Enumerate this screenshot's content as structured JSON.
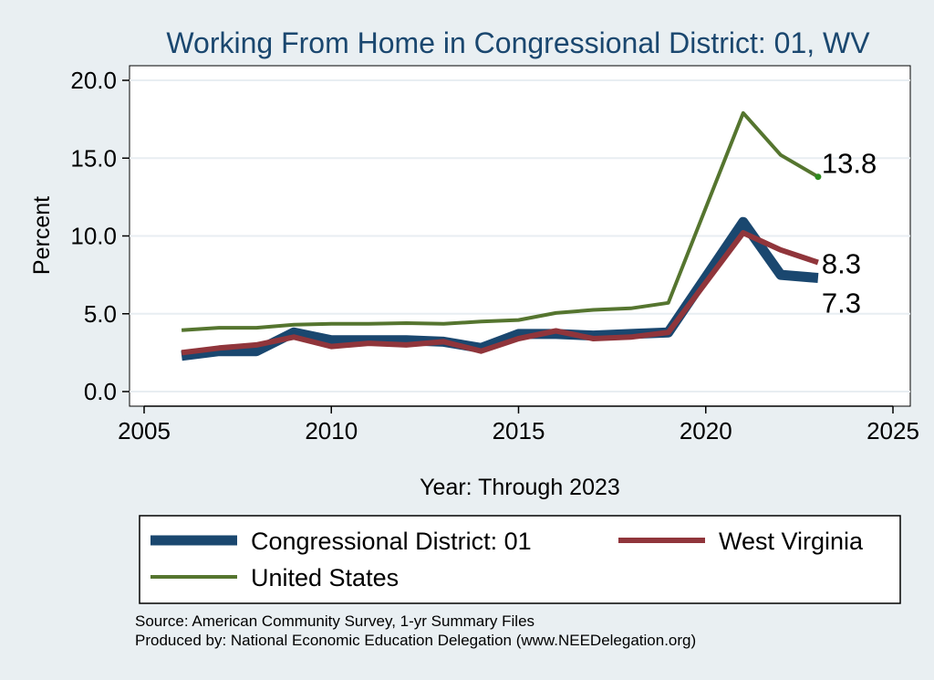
{
  "chart_data": {
    "type": "line",
    "title": "Working From Home in Congressional District: 01, WV",
    "xlabel": "Year: Through 2023",
    "ylabel": "Percent",
    "xlim": [
      2005,
      2025
    ],
    "ylim": [
      0,
      20
    ],
    "xticks": [
      2005,
      2010,
      2015,
      2020,
      2025
    ],
    "yticks": [
      0,
      5,
      10,
      15,
      20
    ],
    "ytick_labels": [
      "0.0",
      "5.0",
      "10.0",
      "15.0",
      "20.0"
    ],
    "grid": true,
    "legend_position": "bottom",
    "x": [
      2006,
      2007,
      2008,
      2009,
      2010,
      2011,
      2012,
      2013,
      2014,
      2015,
      2016,
      2017,
      2018,
      2019,
      2021,
      2022,
      2023
    ],
    "series": [
      {
        "name": "Congressional District: 01",
        "color": "#1a476f",
        "values": [
          2.3,
          2.6,
          2.6,
          3.8,
          3.3,
          3.3,
          3.3,
          3.2,
          2.8,
          3.7,
          3.7,
          3.6,
          3.7,
          3.8,
          10.9,
          7.5,
          7.3
        ],
        "end_label": "7.3"
      },
      {
        "name": "West Virginia",
        "color": "#90353b",
        "values": [
          2.5,
          2.8,
          3.0,
          3.5,
          2.9,
          3.1,
          3.0,
          3.2,
          2.6,
          3.4,
          3.9,
          3.4,
          3.5,
          3.8,
          10.2,
          9.1,
          8.3
        ],
        "end_label": "8.3"
      },
      {
        "name": "United States",
        "color": "#55752f",
        "values": [
          3.95,
          4.1,
          4.1,
          4.3,
          4.35,
          4.35,
          4.4,
          4.35,
          4.5,
          4.6,
          5.05,
          5.25,
          5.35,
          5.7,
          17.9,
          15.2,
          13.8
        ],
        "end_label": "13.8"
      }
    ]
  },
  "footer": {
    "source": "Source: American Community Survey, 1-yr Summary Files",
    "produced_by": "Produced by: National Economic Education Delegation (www.NEEDelegation.org)"
  }
}
